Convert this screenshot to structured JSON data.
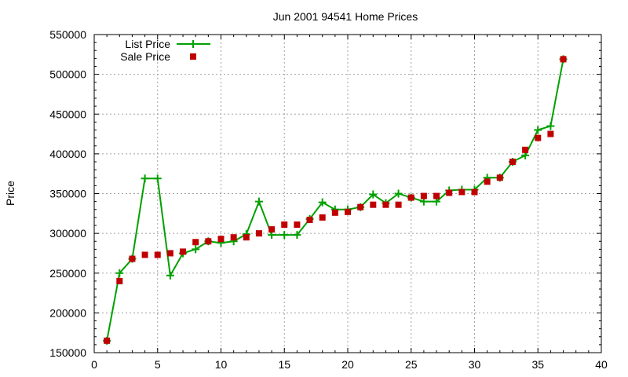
{
  "chart_data": {
    "type": "line",
    "title": "Jun 2001 94541 Home Prices",
    "xlabel": "",
    "ylabel": "Price",
    "xlim": [
      0,
      40
    ],
    "ylim": [
      150000,
      550000
    ],
    "xticks": [
      "0",
      "5",
      "10",
      "15",
      "20",
      "25",
      "30",
      "35",
      "40"
    ],
    "yticks": [
      "150000",
      "200000",
      "250000",
      "300000",
      "350000",
      "400000",
      "450000",
      "500000",
      "550000"
    ],
    "grid": true,
    "legend_position": "top-left",
    "series": [
      {
        "name": "List Price",
        "style": "line-with-plus-markers",
        "color": "#00a000",
        "x": [
          1,
          2,
          3,
          4,
          5,
          6,
          7,
          8,
          9,
          10,
          11,
          12,
          13,
          14,
          15,
          16,
          17,
          18,
          19,
          20,
          21,
          22,
          23,
          24,
          25,
          26,
          27,
          28,
          29,
          30,
          31,
          32,
          33,
          34,
          35,
          36,
          37
        ],
        "values": [
          165000,
          250000,
          268000,
          369000,
          369000,
          247000,
          275000,
          280000,
          290000,
          288000,
          290000,
          299000,
          340000,
          298000,
          298000,
          298000,
          318000,
          339000,
          330000,
          330000,
          333000,
          349000,
          338000,
          350000,
          345000,
          340000,
          340000,
          354000,
          355000,
          355000,
          370000,
          370000,
          390000,
          398000,
          430000,
          435000,
          519000
        ]
      },
      {
        "name": "Sale Price",
        "style": "square-markers",
        "color": "#c00000",
        "x": [
          1,
          2,
          3,
          4,
          5,
          6,
          7,
          8,
          9,
          10,
          11,
          12,
          13,
          14,
          15,
          16,
          17,
          18,
          19,
          20,
          21,
          22,
          23,
          24,
          25,
          26,
          27,
          28,
          29,
          30,
          31,
          32,
          33,
          34,
          35,
          36,
          37
        ],
        "values": [
          165000,
          240000,
          268000,
          273000,
          273000,
          275000,
          277000,
          289000,
          290000,
          293000,
          295000,
          295000,
          300000,
          305000,
          311000,
          311000,
          317000,
          320000,
          326000,
          327000,
          333000,
          336000,
          336000,
          336000,
          345000,
          347000,
          347000,
          351000,
          352000,
          352000,
          365000,
          370000,
          390000,
          405000,
          420000,
          425000,
          519000
        ]
      }
    ]
  }
}
